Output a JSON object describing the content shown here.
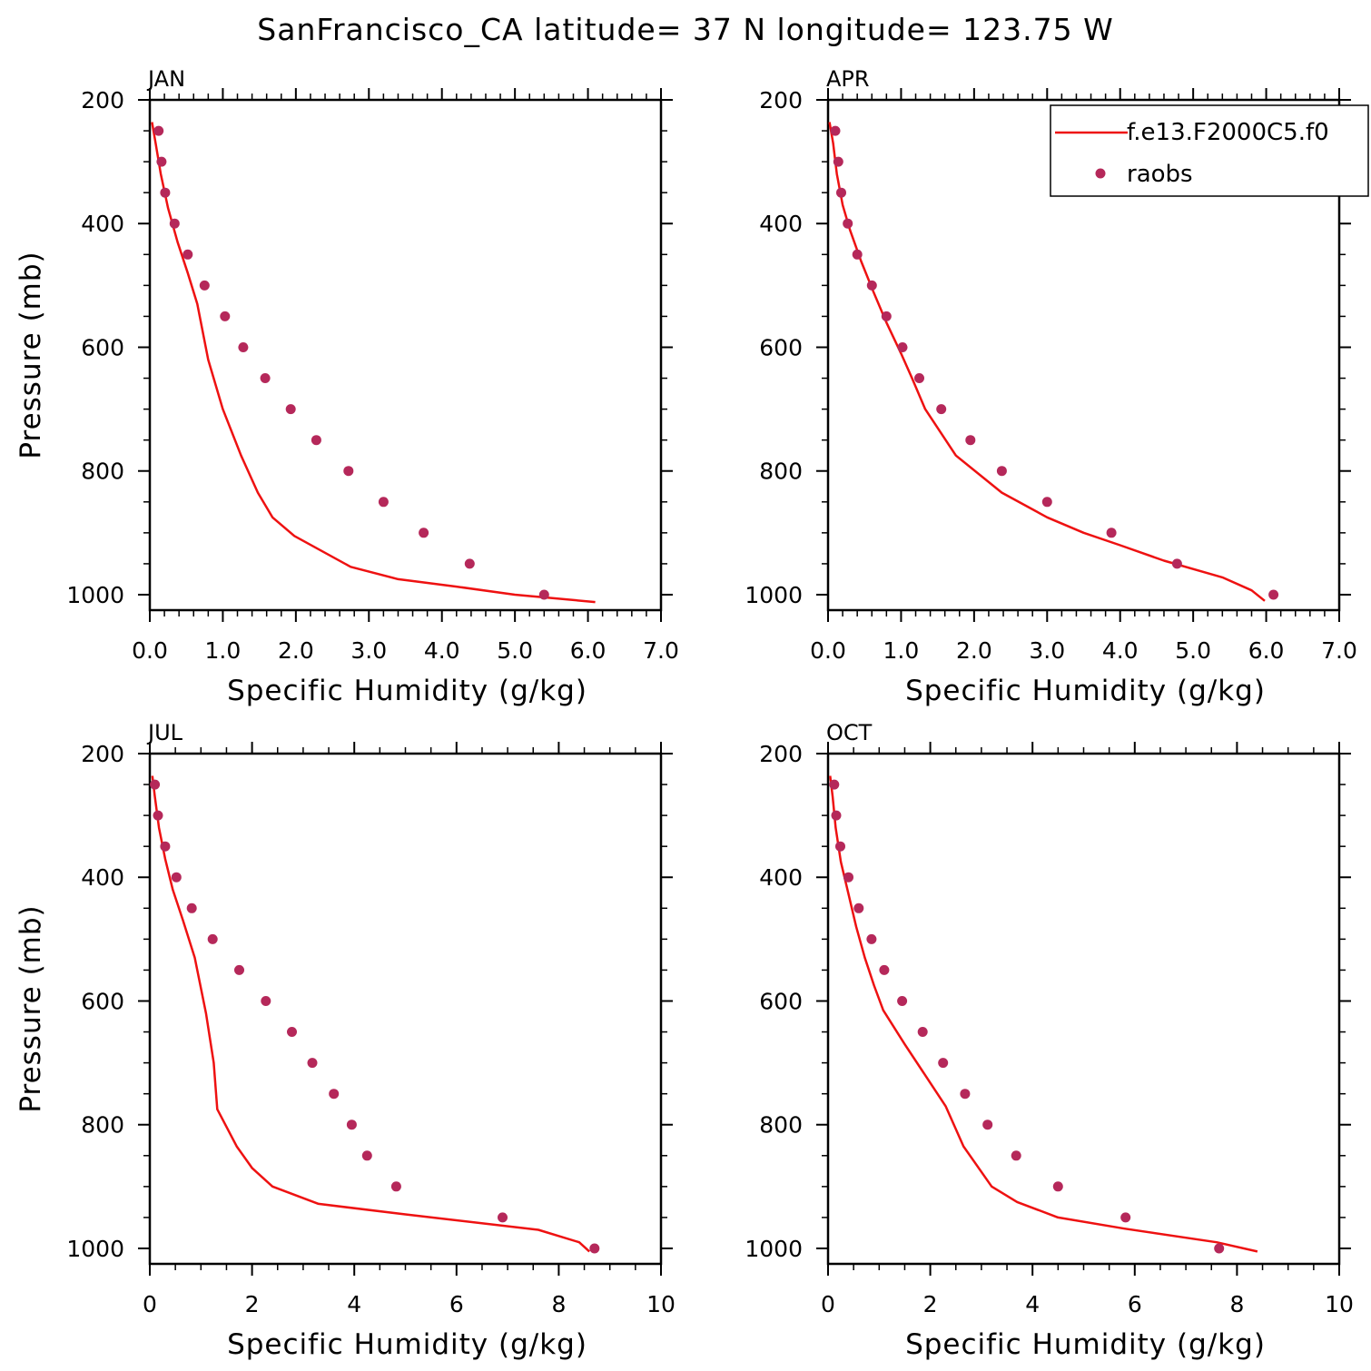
{
  "figure": {
    "title": "SanFrancisco_CA  latitude= 37 N longitude= 123.75 W"
  },
  "colors": {
    "model": "#ee1111",
    "obs": "#b5285a",
    "axes": "#000000"
  },
  "chart_data": [
    {
      "type": "line",
      "panel": "JAN",
      "xlabel": "Specific Humidity (g/kg)",
      "ylabel": "Pressure (mb)",
      "xlim": [
        0,
        7
      ],
      "xticks": [
        "0.0",
        "1.0",
        "2.0",
        "3.0",
        "4.0",
        "5.0",
        "6.0",
        "7.0"
      ],
      "ylim": [
        200,
        1025
      ],
      "y_inverted": true,
      "yticks": [
        "200",
        "400",
        "600",
        "800",
        "1000"
      ],
      "series": [
        {
          "name": "f.e13.F2000C5.f0",
          "kind": "line",
          "x": [
            0.03,
            0.08,
            0.15,
            0.25,
            0.38,
            0.52,
            0.65,
            0.8,
            1.0,
            1.25,
            1.48,
            1.68,
            1.98,
            2.75,
            3.4,
            4.2,
            5.0,
            6.1
          ],
          "y": [
            236,
            270,
            320,
            375,
            430,
            480,
            530,
            620,
            700,
            775,
            835,
            875,
            905,
            955,
            975,
            987,
            1000,
            1012
          ]
        },
        {
          "name": "raobs",
          "kind": "points",
          "x": [
            0.12,
            0.16,
            0.21,
            0.34,
            0.52,
            0.75,
            1.03,
            1.28,
            1.58,
            1.93,
            2.28,
            2.72,
            3.2,
            3.75,
            4.38,
            5.4
          ],
          "y": [
            250,
            300,
            350,
            400,
            450,
            500,
            550,
            600,
            650,
            700,
            750,
            800,
            850,
            900,
            950,
            1000
          ]
        }
      ]
    },
    {
      "type": "line",
      "panel": "APR",
      "xlabel": "Specific Humidity (g/kg)",
      "ylabel": "",
      "xlim": [
        0,
        7
      ],
      "xticks": [
        "0.0",
        "1.0",
        "2.0",
        "3.0",
        "4.0",
        "5.0",
        "6.0",
        "7.0"
      ],
      "ylim": [
        200,
        1025
      ],
      "y_inverted": true,
      "yticks": [
        "200",
        "400",
        "600",
        "800",
        "1000"
      ],
      "legend": "top-right",
      "series": [
        {
          "name": "f.e13.F2000C5.f0",
          "kind": "line",
          "x": [
            0.02,
            0.07,
            0.12,
            0.2,
            0.3,
            0.45,
            0.62,
            0.8,
            1.0,
            1.15,
            1.33,
            1.75,
            2.38,
            3.0,
            3.5,
            4.0,
            4.6,
            5.4,
            5.8,
            5.98
          ],
          "y": [
            236,
            270,
            320,
            370,
            410,
            460,
            510,
            560,
            610,
            650,
            700,
            775,
            835,
            875,
            900,
            920,
            945,
            972,
            993,
            1010
          ]
        },
        {
          "name": "raobs",
          "kind": "points",
          "x": [
            0.1,
            0.14,
            0.18,
            0.27,
            0.4,
            0.6,
            0.8,
            1.02,
            1.25,
            1.55,
            1.95,
            2.38,
            3.0,
            3.88,
            4.78,
            6.1
          ],
          "y": [
            250,
            300,
            350,
            400,
            450,
            500,
            550,
            600,
            650,
            700,
            750,
            800,
            850,
            900,
            950,
            1000
          ]
        }
      ]
    },
    {
      "type": "line",
      "panel": "JUL",
      "xlabel": "Specific Humidity (g/kg)",
      "ylabel": "Pressure (mb)",
      "xlim": [
        0,
        10
      ],
      "xticks": [
        "0",
        "2",
        "4",
        "6",
        "8",
        "10"
      ],
      "ylim": [
        200,
        1025
      ],
      "y_inverted": true,
      "yticks": [
        "200",
        "400",
        "600",
        "800",
        "1000"
      ],
      "series": [
        {
          "name": "f.e13.F2000C5.f0",
          "kind": "line",
          "x": [
            0.05,
            0.1,
            0.18,
            0.3,
            0.45,
            0.65,
            0.88,
            1.1,
            1.25,
            1.32,
            1.7,
            2.0,
            2.4,
            3.3,
            5.0,
            7.6,
            8.4,
            8.6
          ],
          "y": [
            236,
            270,
            320,
            370,
            420,
            470,
            530,
            620,
            700,
            775,
            835,
            870,
            900,
            928,
            945,
            970,
            990,
            1005
          ]
        },
        {
          "name": "raobs",
          "kind": "points",
          "x": [
            0.1,
            0.16,
            0.3,
            0.52,
            0.82,
            1.23,
            1.75,
            2.27,
            2.78,
            3.18,
            3.6,
            3.95,
            4.25,
            4.82,
            6.9,
            8.7
          ],
          "y": [
            250,
            300,
            350,
            400,
            450,
            500,
            550,
            600,
            650,
            700,
            750,
            800,
            850,
            900,
            950,
            1000
          ]
        }
      ]
    },
    {
      "type": "line",
      "panel": "OCT",
      "xlabel": "Specific Humidity (g/kg)",
      "ylabel": "",
      "xlim": [
        0,
        10
      ],
      "xticks": [
        "0",
        "2",
        "4",
        "6",
        "8",
        "10"
      ],
      "ylim": [
        200,
        1025
      ],
      "y_inverted": true,
      "yticks": [
        "200",
        "400",
        "600",
        "800",
        "1000"
      ],
      "series": [
        {
          "name": "f.e13.F2000C5.f0",
          "kind": "line",
          "x": [
            0.04,
            0.09,
            0.15,
            0.25,
            0.38,
            0.55,
            0.72,
            0.9,
            1.08,
            1.5,
            1.9,
            2.3,
            2.65,
            3.2,
            3.7,
            4.5,
            5.8,
            7.6,
            8.4
          ],
          "y": [
            236,
            270,
            320,
            375,
            420,
            480,
            530,
            575,
            615,
            670,
            720,
            770,
            835,
            900,
            925,
            950,
            968,
            990,
            1005
          ]
        },
        {
          "name": "raobs",
          "kind": "points",
          "x": [
            0.12,
            0.16,
            0.24,
            0.4,
            0.6,
            0.85,
            1.1,
            1.45,
            1.85,
            2.25,
            2.68,
            3.12,
            3.68,
            4.5,
            5.82,
            7.65
          ],
          "y": [
            250,
            300,
            350,
            400,
            450,
            500,
            550,
            600,
            650,
            700,
            750,
            800,
            850,
            900,
            950,
            1000
          ]
        }
      ]
    }
  ]
}
